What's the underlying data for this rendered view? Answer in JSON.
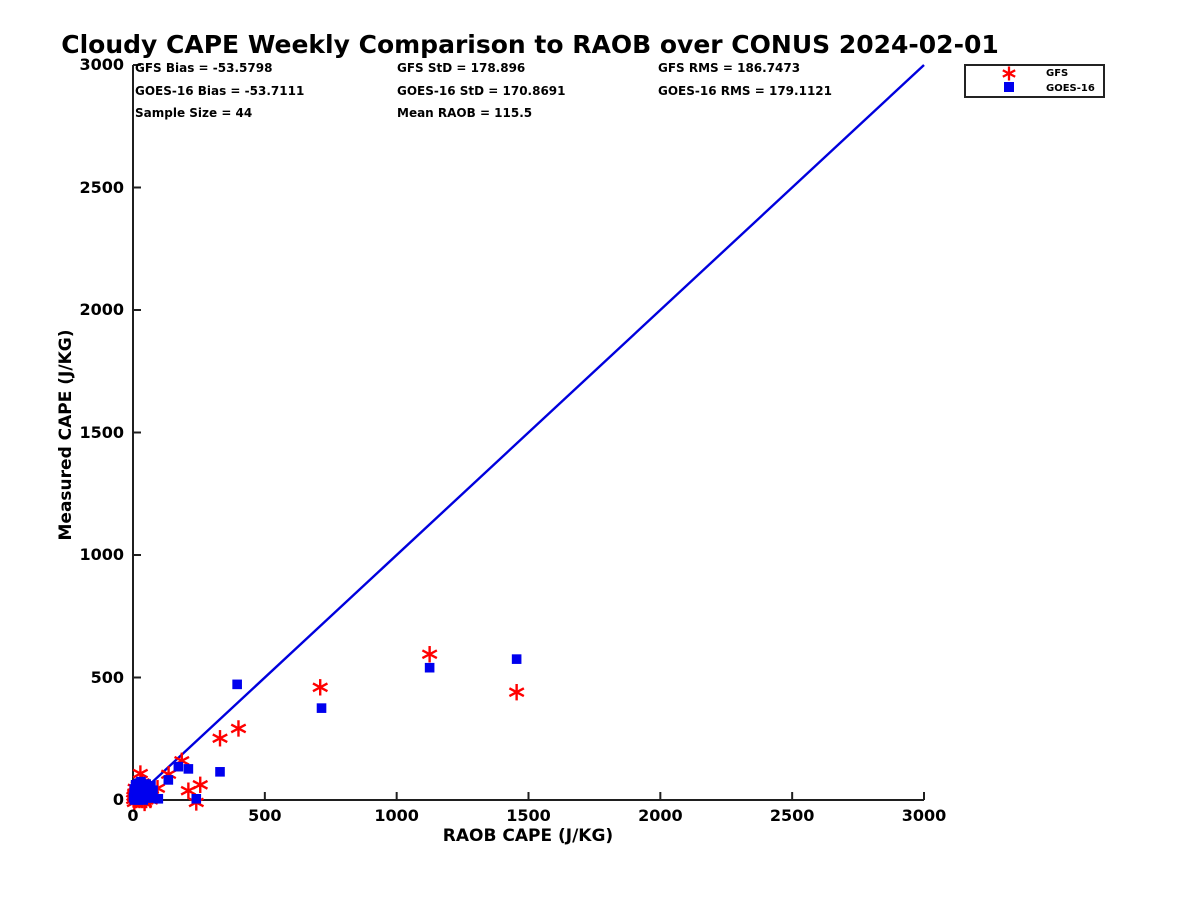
{
  "title": "Cloudy CAPE Weekly Comparison to RAOB over CONUS 2024-02-01",
  "stats": {
    "gfs_bias": "GFS Bias = -53.5798",
    "gfs_std": "GFS StD = 178.896",
    "gfs_rms": "GFS RMS = 186.7473",
    "goes_bias": "GOES-16 Bias = -53.7111",
    "goes_std": "GOES-16 StD = 170.8691",
    "goes_rms": "GOES-16 RMS = 179.1121",
    "sample_size": "Sample Size = 44",
    "mean_raob": "Mean RAOB = 115.5"
  },
  "legend": {
    "items": [
      {
        "label": "GFS",
        "marker": "asterisk",
        "color": "#ff0000"
      },
      {
        "label": "GOES-16",
        "marker": "square",
        "color": "#0000ee"
      }
    ]
  },
  "colors": {
    "gfs": "#ff0000",
    "goes16": "#0000ee",
    "reference_line": "#0000dd",
    "axis": "#1f1f1f"
  },
  "chart_data": {
    "type": "scatter",
    "title": "Cloudy CAPE Weekly Comparison to RAOB over CONUS 2024-02-01",
    "xlabel": "RAOB CAPE (J/KG)",
    "ylabel": "Measured CAPE (J/KG)",
    "xlim": [
      0,
      3000
    ],
    "ylim": [
      0,
      3000
    ],
    "xticks": [
      0,
      500,
      1000,
      1500,
      2000,
      2500,
      3000
    ],
    "yticks": [
      0,
      500,
      1000,
      1500,
      2000,
      2500,
      3000
    ],
    "grid": false,
    "legend_position": "top-right",
    "reference_line": {
      "from": [
        0,
        0
      ],
      "to": [
        3000,
        3000
      ],
      "color": "#0000dd"
    },
    "sample_size": 44,
    "series": [
      {
        "name": "GFS",
        "marker": "asterisk",
        "color": "#ff0000",
        "points": [
          [
            1125,
            595
          ],
          [
            1455,
            440
          ],
          [
            710,
            460
          ],
          [
            400,
            292
          ],
          [
            330,
            252
          ],
          [
            185,
            160
          ],
          [
            255,
            62
          ],
          [
            210,
            38
          ],
          [
            240,
            -10
          ],
          [
            135,
            105
          ],
          [
            28,
            108
          ],
          [
            93,
            48
          ],
          [
            2,
            2
          ],
          [
            3,
            15
          ],
          [
            5,
            -10
          ],
          [
            6,
            28
          ],
          [
            8,
            8
          ],
          [
            10,
            20
          ],
          [
            12,
            0
          ],
          [
            13,
            35
          ],
          [
            15,
            10
          ],
          [
            17,
            25
          ],
          [
            19,
            3
          ],
          [
            21,
            42
          ],
          [
            23,
            15
          ],
          [
            25,
            0
          ],
          [
            27,
            30
          ],
          [
            30,
            8
          ],
          [
            32,
            22
          ],
          [
            35,
            0
          ],
          [
            38,
            15
          ],
          [
            41,
            35
          ],
          [
            44,
            -12
          ],
          [
            47,
            22
          ],
          [
            50,
            0
          ],
          [
            54,
            30
          ],
          [
            58,
            12
          ],
          [
            62,
            25
          ],
          [
            66,
            0
          ],
          [
            70,
            18
          ],
          [
            45,
            55
          ],
          [
            20,
            60
          ],
          [
            8,
            48
          ],
          [
            35,
            70
          ]
        ]
      },
      {
        "name": "GOES-16",
        "marker": "square",
        "color": "#0000ee",
        "points": [
          [
            1125,
            540
          ],
          [
            1455,
            575
          ],
          [
            715,
            375
          ],
          [
            395,
            472
          ],
          [
            330,
            115
          ],
          [
            210,
            127
          ],
          [
            172,
            136
          ],
          [
            134,
            82
          ],
          [
            240,
            5
          ],
          [
            96,
            5
          ],
          [
            20,
            68
          ],
          [
            2,
            10
          ],
          [
            4,
            22
          ],
          [
            6,
            0
          ],
          [
            8,
            35
          ],
          [
            10,
            14
          ],
          [
            12,
            50
          ],
          [
            14,
            5
          ],
          [
            16,
            28
          ],
          [
            18,
            12
          ],
          [
            20,
            0
          ],
          [
            22,
            40
          ],
          [
            24,
            18
          ],
          [
            26,
            60
          ],
          [
            28,
            8
          ],
          [
            30,
            30
          ],
          [
            33,
            15
          ],
          [
            36,
            45
          ],
          [
            39,
            0
          ],
          [
            42,
            25
          ],
          [
            45,
            55
          ],
          [
            48,
            12
          ],
          [
            51,
            35
          ],
          [
            54,
            20
          ],
          [
            57,
            48
          ],
          [
            60,
            8
          ],
          [
            64,
            30
          ],
          [
            68,
            58
          ],
          [
            72,
            15
          ],
          [
            76,
            40
          ],
          [
            10,
            62
          ],
          [
            5,
            45
          ],
          [
            30,
            75
          ],
          [
            50,
            65
          ]
        ]
      }
    ]
  }
}
